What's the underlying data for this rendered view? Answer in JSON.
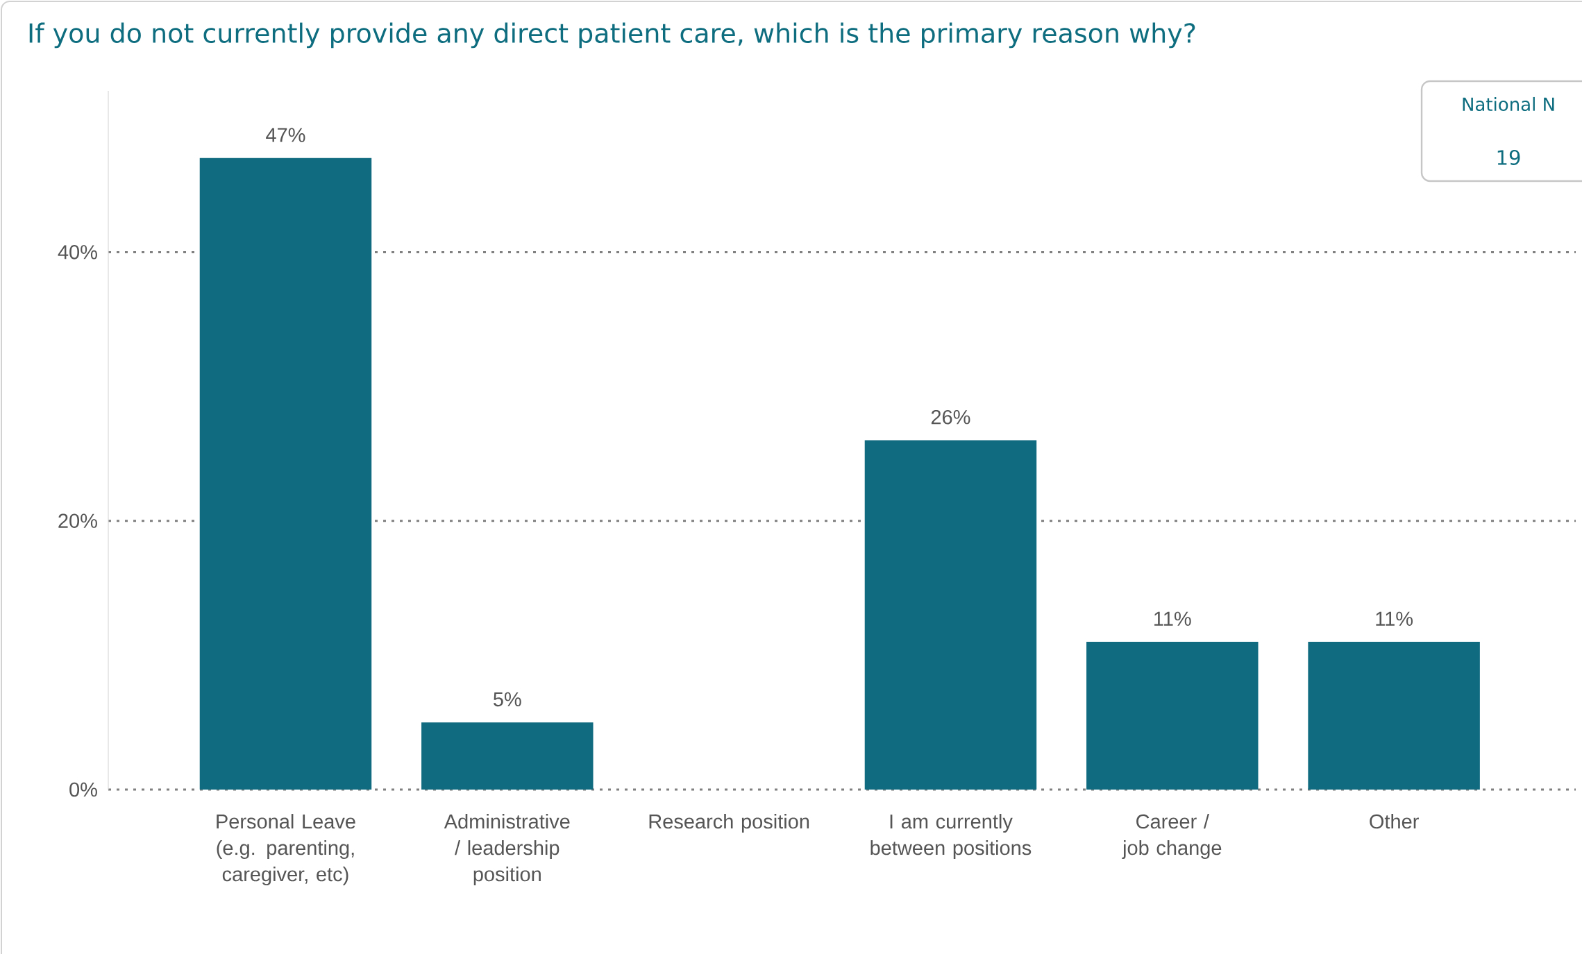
{
  "chart_data": {
    "type": "bar",
    "title": "If you do not currently provide any direct patient care, which is the primary reason why?",
    "categories": [
      "Personal Leave (e.g. parenting, caregiver, etc)",
      "Administrative / leadership position",
      "Research position",
      "I am currently between positions",
      "Career / job change",
      "Other"
    ],
    "values": [
      47,
      5,
      0,
      26,
      11,
      11
    ],
    "value_labels": [
      "47%",
      "5%",
      null,
      "26%",
      "11%",
      "11%"
    ],
    "color": "#106b80",
    "ylim": [
      0,
      52
    ],
    "yticks": [
      {
        "value": 0,
        "label": "0%"
      },
      {
        "value": 20,
        "label": "20%"
      },
      {
        "value": 40,
        "label": "40%"
      }
    ],
    "grid": "y",
    "annotations": [
      "National N",
      "19"
    ]
  }
}
